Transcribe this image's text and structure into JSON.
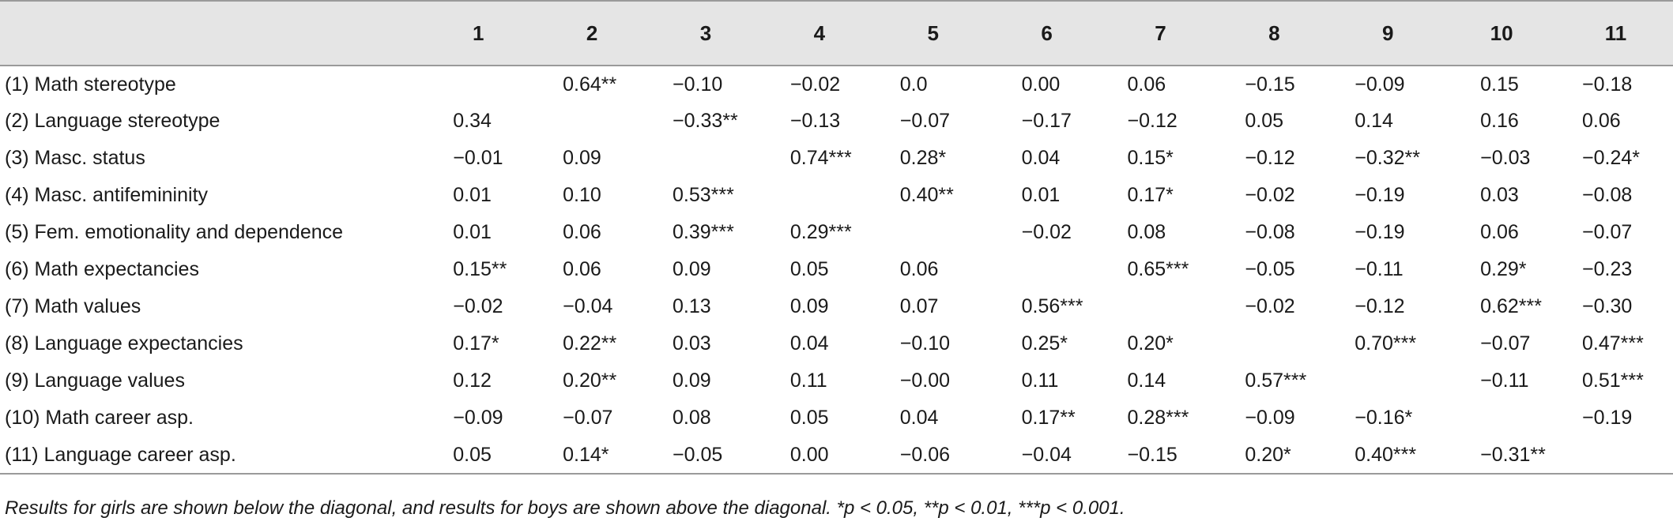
{
  "columns": [
    "1",
    "2",
    "3",
    "4",
    "5",
    "6",
    "7",
    "8",
    "9",
    "10",
    "11"
  ],
  "rows": [
    {
      "label": "(1) Math stereotype",
      "cells": [
        "",
        "0.64**",
        "−0.10",
        "−0.02",
        "0.0",
        "0.00",
        "0.06",
        "−0.15",
        "−0.09",
        "0.15",
        "−0.18"
      ]
    },
    {
      "label": "(2) Language stereotype",
      "cells": [
        "0.34",
        "",
        "−0.33**",
        "−0.13",
        "−0.07",
        "−0.17",
        "−0.12",
        "0.05",
        "0.14",
        "0.16",
        "0.06"
      ]
    },
    {
      "label": "(3) Masc. status",
      "cells": [
        "−0.01",
        "0.09",
        "",
        "0.74***",
        "0.28*",
        "0.04",
        "0.15*",
        "−0.12",
        "−0.32**",
        "−0.03",
        "−0.24*"
      ]
    },
    {
      "label": "(4) Masc. antifemininity",
      "cells": [
        "0.01",
        "0.10",
        "0.53***",
        "",
        "0.40**",
        "0.01",
        "0.17*",
        "−0.02",
        "−0.19",
        "0.03",
        "−0.08"
      ]
    },
    {
      "label": "(5) Fem. emotionality and dependence",
      "cells": [
        "0.01",
        "0.06",
        "0.39***",
        "0.29***",
        "",
        "−0.02",
        "0.08",
        "−0.08",
        "−0.19",
        "0.06",
        "−0.07"
      ]
    },
    {
      "label": "(6) Math expectancies",
      "cells": [
        "0.15**",
        "0.06",
        "0.09",
        "0.05",
        "0.06",
        "",
        "0.65***",
        "−0.05",
        "−0.11",
        "0.29*",
        "−0.23"
      ]
    },
    {
      "label": "(7) Math values",
      "cells": [
        "−0.02",
        "−0.04",
        "0.13",
        "0.09",
        "0.07",
        "0.56***",
        "",
        "−0.02",
        "−0.12",
        "0.62***",
        "−0.30"
      ]
    },
    {
      "label": "(8) Language expectancies",
      "cells": [
        "0.17*",
        "0.22**",
        "0.03",
        "0.04",
        "−0.10",
        "0.25*",
        "0.20*",
        "",
        "0.70***",
        "−0.07",
        "0.47***"
      ]
    },
    {
      "label": "(9) Language values",
      "cells": [
        "0.12",
        "0.20**",
        "0.09",
        "0.11",
        "−0.00",
        "0.11",
        "0.14",
        "0.57***",
        "",
        "−0.11",
        "0.51***"
      ]
    },
    {
      "label": "(10) Math career asp.",
      "cells": [
        "−0.09",
        "−0.07",
        "0.08",
        "0.05",
        "0.04",
        "0.17**",
        "0.28***",
        "−0.09",
        "−0.16*",
        "",
        "−0.19"
      ]
    },
    {
      "label": "(11) Language career asp.",
      "cells": [
        "0.05",
        "0.14*",
        "−0.05",
        "0.00",
        "−0.06",
        "−0.04",
        "−0.15",
        "0.20*",
        "0.40***",
        "−0.31**",
        ""
      ]
    }
  ],
  "note": "Results for girls are shown below the diagonal, and results for boys are shown above the diagonal. *p < 0.05, **p < 0.01, ***p < 0.001."
}
